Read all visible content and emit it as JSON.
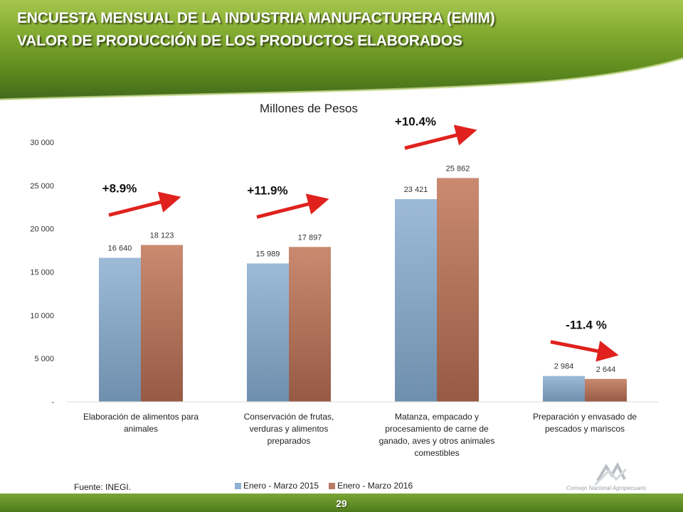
{
  "header": {
    "title_line1": "ENCUESTA MENSUAL DE LA INDUSTRIA MANUFACTURERA (EMIM)",
    "title_line2": "VALOR DE PRODUCCIÓN DE LOS PRODUCTOS ELABORADOS"
  },
  "footer": {
    "source": "Fuente: INEGI.",
    "page_number": "29",
    "logo_text": "Consejo Nacional Agropecuario"
  },
  "colors": {
    "series_2015": "#8fb0d0",
    "series_2016": "#b87a63",
    "arrow": "#e0211d",
    "header_green": "#6b9a26"
  },
  "chart_data": {
    "type": "bar",
    "title": "Millones de Pesos",
    "categories": [
      [
        "Elaboración de alimentos para",
        "animales"
      ],
      [
        "Conservación de frutas,",
        "verduras y alimentos",
        "preparados"
      ],
      [
        "Matanza, empacado y",
        "procesamiento de carne de",
        "ganado, aves y otros animales",
        "comestibles"
      ],
      [
        "Preparación y envasado de",
        "pescados y mariscos"
      ]
    ],
    "series": [
      {
        "name": "Enero - Marzo 2015",
        "values": [
          16640,
          15989,
          23421,
          2984
        ],
        "labels": [
          "16 640",
          "15 989",
          "23 421",
          "2 984"
        ]
      },
      {
        "name": "Enero - Marzo 2016",
        "values": [
          18123,
          17897,
          25862,
          2644
        ],
        "labels": [
          "18 123",
          "17 897",
          "25 862",
          "2 644"
        ]
      }
    ],
    "ylim": [
      0,
      30000
    ],
    "yticks": [
      0,
      5000,
      10000,
      15000,
      20000,
      25000,
      30000
    ],
    "ytick_labels": [
      "-",
      "5 000",
      "10 000",
      "15 000",
      "20 000",
      "25 000",
      "30 000"
    ],
    "grid": false,
    "legend_position": "bottom",
    "annotations": [
      {
        "text": "+8.9%",
        "category": 0,
        "direction": "up"
      },
      {
        "text": "+11.9%",
        "category": 1,
        "direction": "up"
      },
      {
        "text": "+10.4%",
        "category": 2,
        "direction": "up"
      },
      {
        "text": "-11.4 %",
        "category": 3,
        "direction": "down"
      }
    ]
  }
}
